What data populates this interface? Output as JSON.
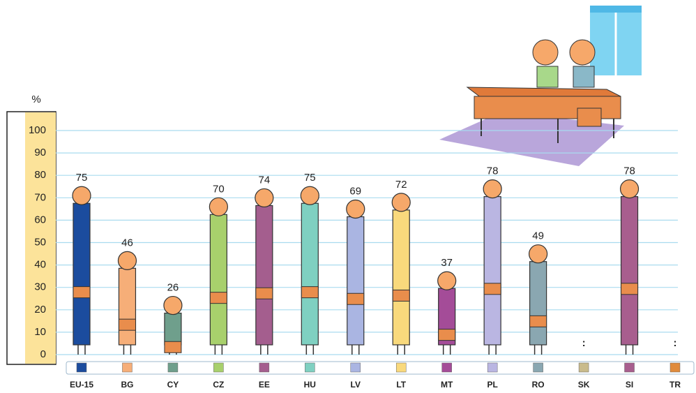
{
  "chart_data": {
    "type": "bar",
    "y_label": "%",
    "categories": [
      "EU-15",
      "BG",
      "CY",
      "CZ",
      "EE",
      "HU",
      "LV",
      "LT",
      "MT",
      "PL",
      "RO",
      "SK",
      "SI",
      "TR"
    ],
    "values": [
      75,
      46,
      26,
      70,
      74,
      75,
      69,
      72,
      37,
      78,
      49,
      null,
      78,
      null
    ],
    "value_labels": [
      "75",
      "46",
      "26",
      "70",
      "74",
      "75",
      "69",
      "72",
      "37",
      "78",
      "49",
      ":",
      "78",
      ":"
    ],
    "colors": [
      "#1b4c9e",
      "#f6ae78",
      "#6f9f8c",
      "#a8d06c",
      "#a45e8e",
      "#7fd0c1",
      "#aab5e2",
      "#f9d97c",
      "#a44c98",
      "#bab6e2",
      "#8aa7b1",
      "#c9bb8c",
      "#a85e8e",
      "#e08b3c"
    ],
    "ylim": [
      0,
      100
    ],
    "yticks": [
      0,
      10,
      20,
      30,
      40,
      50,
      60,
      70,
      80,
      90,
      100
    ],
    "grid": true
  }
}
